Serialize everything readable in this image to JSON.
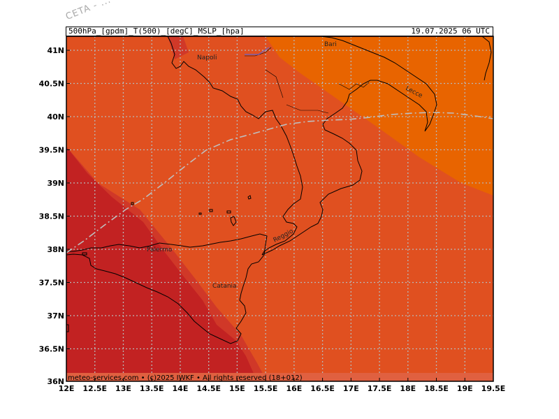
{
  "watermark": "CETA - ...",
  "header": {
    "left": "500hPa_[gpdm]_T(500)_[degC]_MSLP_[hpa]",
    "right": "19.07.2025 06 UTC"
  },
  "footer": "meteo-services.com • (c)2025 IWKF • All rights reserved (18+012)",
  "colors": {
    "warm": "#e05020",
    "hot": "#c22222",
    "hotter": "#d03828",
    "mild": "#e86400",
    "border_line": "#000000",
    "grid": "#b8b8b8"
  },
  "axes": {
    "lon_labels": [
      "12E",
      "12.5E",
      "13E",
      "13.5E",
      "14E",
      "14.5E",
      "15E",
      "15.5E",
      "16E",
      "16.5E",
      "17E",
      "17.5E",
      "18E",
      "18.5E",
      "19E",
      "19.5E"
    ],
    "lat_labels": [
      "41N",
      "40.5N",
      "40N",
      "39.5N",
      "39N",
      "38.5N",
      "38N",
      "37.5N",
      "37N",
      "36.5N",
      "36N"
    ]
  },
  "cities": [
    {
      "name": "Napoli"
    },
    {
      "name": "Bari"
    },
    {
      "name": "Lecce"
    },
    {
      "name": "Reggio"
    },
    {
      "name": "Palermo"
    },
    {
      "name": "Catania"
    }
  ]
}
